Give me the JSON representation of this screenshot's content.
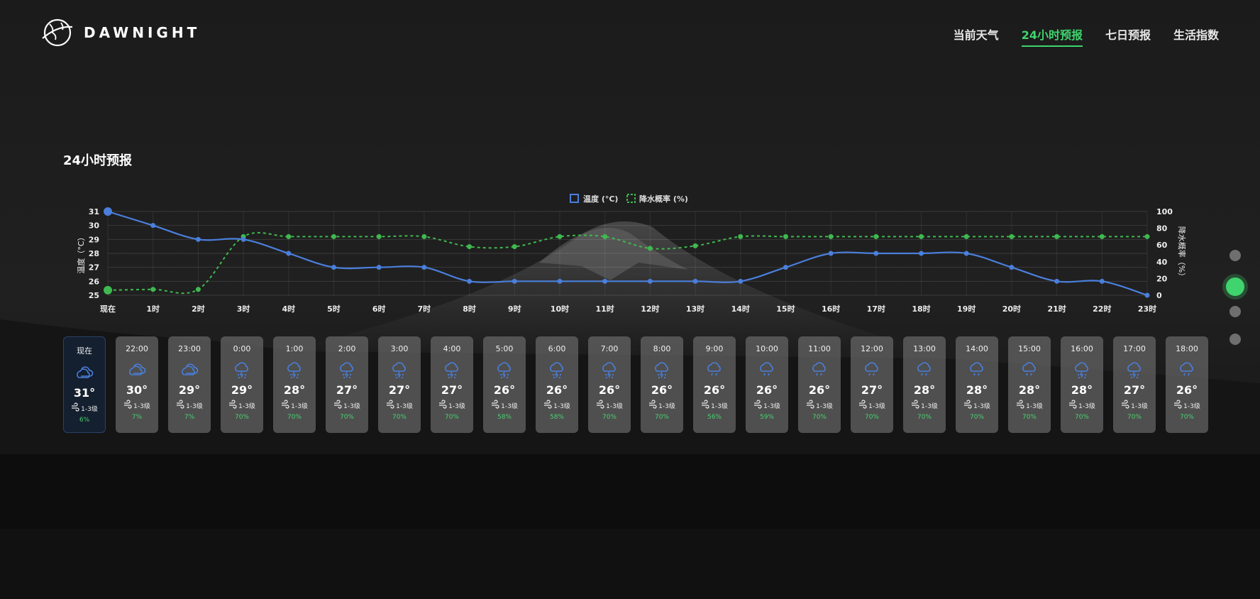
{
  "brand": {
    "name": "DAWNIGHT"
  },
  "nav": [
    {
      "label": "当前天气",
      "active": false
    },
    {
      "label": "24小时预报",
      "active": true
    },
    {
      "label": "七日预报",
      "active": false
    },
    {
      "label": "生活指数",
      "active": false
    }
  ],
  "section_title": "24小时预报",
  "colors": {
    "accent": "#3fd46e",
    "temp_line": "#4a7fdc",
    "rain_line": "#3fb94f"
  },
  "chart_data": {
    "type": "line",
    "categories": [
      "现在",
      "1时",
      "2时",
      "3时",
      "4时",
      "5时",
      "6时",
      "7时",
      "8时",
      "9时",
      "10时",
      "11时",
      "12时",
      "13时",
      "14时",
      "15时",
      "16时",
      "17时",
      "18时",
      "19时",
      "20时",
      "21时",
      "22时",
      "23时"
    ],
    "series": [
      {
        "name": "温度 (°C)",
        "axis": "left",
        "style": "solid",
        "values": [
          31,
          30,
          29,
          29,
          28,
          27,
          27,
          27,
          26,
          26,
          26,
          26,
          26,
          26,
          26,
          27,
          28,
          28,
          28,
          28,
          27,
          26,
          26,
          25
        ]
      },
      {
        "name": "降水概率 (%)",
        "axis": "right",
        "style": "dashed",
        "values": [
          6,
          7,
          7,
          70,
          70,
          70,
          70,
          70,
          58,
          58,
          70,
          70,
          56,
          59,
          70,
          70,
          70,
          70,
          70,
          70,
          70,
          70,
          70,
          70
        ]
      }
    ],
    "ylabel": "温度（°C）",
    "y2label": "降水概率（%）",
    "ylim": [
      25,
      31
    ],
    "y2lim": [
      0,
      100
    ],
    "yticks": [
      25,
      26,
      27,
      28,
      29,
      30,
      31
    ],
    "y2ticks": [
      0,
      20,
      40,
      60,
      80,
      100
    ],
    "grid": true,
    "legend": "top-center"
  },
  "hourly": [
    {
      "time": "现在",
      "icon": "cloudy-icon",
      "temp": "31°",
      "wind": "1-3级",
      "rain": "6%",
      "now": true
    },
    {
      "time": "22:00",
      "icon": "cloudy-icon",
      "temp": "30°",
      "wind": "1-3级",
      "rain": "7%"
    },
    {
      "time": "23:00",
      "icon": "cloudy-icon",
      "temp": "29°",
      "wind": "1-3级",
      "rain": "7%"
    },
    {
      "time": "0:00",
      "icon": "thunder-rain-icon",
      "temp": "29°",
      "wind": "1-3级",
      "rain": "70%"
    },
    {
      "time": "1:00",
      "icon": "thunder-rain-icon",
      "temp": "28°",
      "wind": "1-3级",
      "rain": "70%"
    },
    {
      "time": "2:00",
      "icon": "thunder-rain-icon",
      "temp": "27°",
      "wind": "1-3级",
      "rain": "70%"
    },
    {
      "time": "3:00",
      "icon": "thunder-rain-icon",
      "temp": "27°",
      "wind": "1-3级",
      "rain": "70%"
    },
    {
      "time": "4:00",
      "icon": "thunder-rain-icon",
      "temp": "27°",
      "wind": "1-3级",
      "rain": "70%"
    },
    {
      "time": "5:00",
      "icon": "thunder-rain-icon",
      "temp": "26°",
      "wind": "1-3级",
      "rain": "58%"
    },
    {
      "time": "6:00",
      "icon": "thunder-rain-icon",
      "temp": "26°",
      "wind": "1-3级",
      "rain": "58%"
    },
    {
      "time": "7:00",
      "icon": "thunder-rain-icon",
      "temp": "26°",
      "wind": "1-3级",
      "rain": "70%"
    },
    {
      "time": "8:00",
      "icon": "thunder-rain-icon",
      "temp": "26°",
      "wind": "1-3级",
      "rain": "70%"
    },
    {
      "time": "9:00",
      "icon": "rain-icon",
      "temp": "26°",
      "wind": "1-3级",
      "rain": "56%"
    },
    {
      "time": "10:00",
      "icon": "rain-icon",
      "temp": "26°",
      "wind": "1-3级",
      "rain": "59%"
    },
    {
      "time": "11:00",
      "icon": "rain-icon",
      "temp": "26°",
      "wind": "1-3级",
      "rain": "70%"
    },
    {
      "time": "12:00",
      "icon": "rain-icon",
      "temp": "27°",
      "wind": "1-3级",
      "rain": "70%"
    },
    {
      "time": "13:00",
      "icon": "rain-icon",
      "temp": "28°",
      "wind": "1-3级",
      "rain": "70%"
    },
    {
      "time": "14:00",
      "icon": "rain-icon",
      "temp": "28°",
      "wind": "1-3级",
      "rain": "70%"
    },
    {
      "time": "15:00",
      "icon": "rain-icon",
      "temp": "28°",
      "wind": "1-3级",
      "rain": "70%"
    },
    {
      "time": "16:00",
      "icon": "thunder-rain-icon",
      "temp": "28°",
      "wind": "1-3级",
      "rain": "70%"
    },
    {
      "time": "17:00",
      "icon": "thunder-rain-icon",
      "temp": "27°",
      "wind": "1-3级",
      "rain": "70%"
    },
    {
      "time": "18:00",
      "icon": "rain-icon",
      "temp": "26°",
      "wind": "1-3级",
      "rain": "70%"
    }
  ],
  "page_dots": {
    "count": 4,
    "active_index": 1
  }
}
